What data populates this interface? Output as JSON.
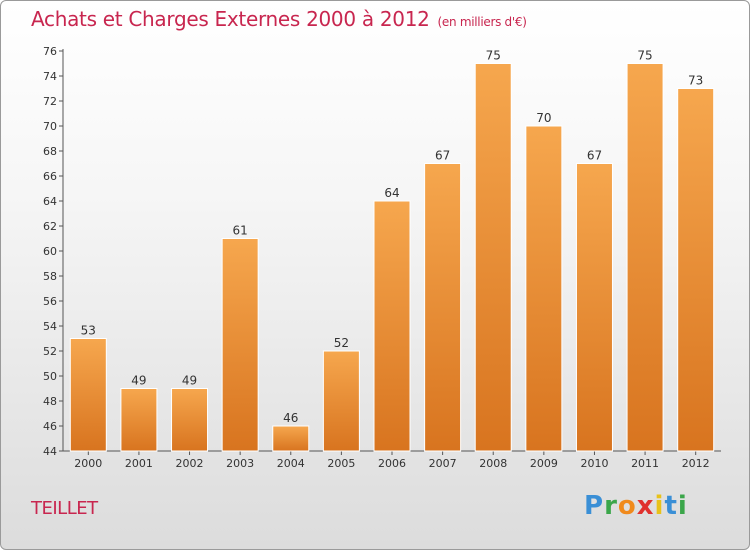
{
  "title": "Achats et Charges Externes 2000 à 2012",
  "subtitle": "(en milliers d'€)",
  "commune": "TEILLET",
  "logo": {
    "letters": [
      "P",
      "r",
      "o",
      "x",
      "i",
      "t",
      "i"
    ],
    "colors": [
      "#3a8fd6",
      "#3ba64a",
      "#f08a1c",
      "#e0312e",
      "#e8c21a",
      "#3a8fd6",
      "#3ba64a"
    ]
  },
  "colors": {
    "bar_top": "#f6a74e",
    "bar_bottom": "#d8741f",
    "title": "#c8264f"
  },
  "chart_data": {
    "type": "bar",
    "title": "Achats et Charges Externes 2000 à 2012",
    "categories": [
      "2000",
      "2001",
      "2002",
      "2003",
      "2004",
      "2005",
      "2006",
      "2007",
      "2008",
      "2009",
      "2010",
      "2011",
      "2012"
    ],
    "values": [
      53,
      49,
      49,
      61,
      46,
      52,
      64,
      67,
      75,
      70,
      67,
      75,
      73
    ],
    "ylim": [
      44,
      76
    ],
    "yticks": [
      44,
      46,
      48,
      50,
      52,
      54,
      56,
      58,
      60,
      62,
      64,
      66,
      68,
      70,
      72,
      74,
      76
    ],
    "xlabel": "",
    "ylabel": "",
    "grid": false,
    "data_labels": true
  }
}
